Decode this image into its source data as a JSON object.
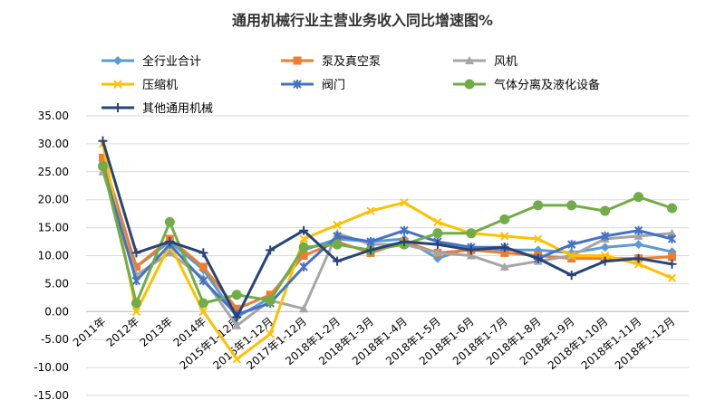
{
  "chart_data": {
    "type": "line",
    "title": "通用机械行业主营业务收入同比增速图%",
    "xlabel": "",
    "ylabel": "",
    "ylim": [
      -15,
      35
    ],
    "yticks": [
      "35.00",
      "30.00",
      "25.00",
      "20.00",
      "15.00",
      "10.00",
      "5.00",
      "0.00",
      "-5.00",
      "-10.00",
      "-15.00"
    ],
    "categories": [
      "2011年",
      "2012年",
      "2013年",
      "2014年",
      "2015年1-12月",
      "2016年1-12月",
      "2017年1-12月",
      "2018年1-2月",
      "2018年1-3月",
      "2018年1-4月",
      "2018年1-5月",
      "2018年1-6月",
      "2018年1-7月",
      "2018年1-8月",
      "2018年1-9月",
      "2018年1-10月",
      "2018年1-11月",
      "2018年1-12月"
    ],
    "grid": true,
    "legend_position": "top",
    "series": [
      {
        "name": "全行业合计",
        "color": "#5B9BD5",
        "marker": "diamond",
        "values": [
          27.0,
          8.0,
          12.5,
          7.5,
          -1.0,
          2.5,
          11.0,
          13.0,
          12.5,
          13.0,
          9.5,
          11.5,
          11.0,
          11.0,
          10.5,
          11.5,
          12.0,
          10.7
        ]
      },
      {
        "name": "泵及真空泵",
        "color": "#ED7D31",
        "marker": "square",
        "values": [
          27.5,
          8.0,
          13.0,
          8.0,
          0.5,
          3.0,
          10.0,
          12.5,
          10.5,
          12.5,
          10.5,
          11.0,
          10.5,
          10.0,
          9.5,
          9.5,
          9.5,
          9.8
        ]
      },
      {
        "name": "风机",
        "color": "#A5A5A5",
        "marker": "triangle",
        "values": [
          25.0,
          6.5,
          10.5,
          6.0,
          -2.5,
          2.0,
          0.5,
          14.0,
          12.0,
          12.0,
          10.5,
          10.0,
          8.0,
          9.0,
          10.0,
          13.0,
          13.5,
          14.0
        ]
      },
      {
        "name": "压缩机",
        "color": "#FFC000",
        "marker": "x",
        "values": [
          30.0,
          0.0,
          12.0,
          0.0,
          -8.5,
          -4.0,
          13.0,
          15.5,
          18.0,
          19.5,
          16.0,
          14.0,
          13.5,
          13.0,
          10.0,
          10.0,
          8.5,
          6.0
        ]
      },
      {
        "name": "阀门",
        "color": "#4472C4",
        "marker": "star",
        "values": [
          26.0,
          5.5,
          12.0,
          5.5,
          -0.5,
          1.5,
          8.0,
          13.5,
          12.5,
          14.5,
          12.5,
          11.5,
          11.5,
          9.5,
          12.0,
          13.5,
          14.5,
          13.0
        ]
      },
      {
        "name": "气体分离及液化设备",
        "color": "#70AD47",
        "marker": "circle",
        "values": [
          26.0,
          1.5,
          16.0,
          1.5,
          3.0,
          2.0,
          11.5,
          12.0,
          11.0,
          12.0,
          14.0,
          14.0,
          16.5,
          19.0,
          19.0,
          18.0,
          20.5,
          18.5
        ]
      },
      {
        "name": "其他通用机械",
        "color": "#264478",
        "marker": "plus",
        "values": [
          30.5,
          10.5,
          12.5,
          10.5,
          -1.0,
          11.0,
          14.5,
          9.0,
          11.0,
          12.5,
          12.0,
          11.0,
          11.5,
          9.5,
          6.5,
          9.0,
          9.5,
          8.5
        ]
      }
    ]
  }
}
